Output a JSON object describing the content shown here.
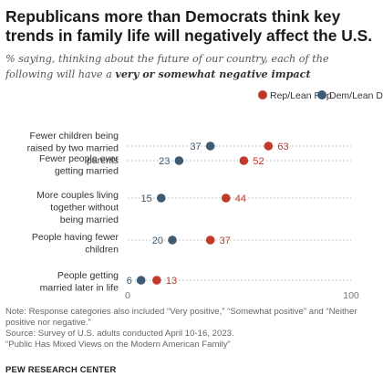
{
  "title": "Republicans more than Democrats think key trends in family life will negatively affect the U.S.",
  "subtitle_prefix": "% saying, thinking about the future of our country, each of the following will have a ",
  "subtitle_emphasis": "very or somewhat negative impact",
  "colors": {
    "rep": "#c0392b",
    "dem": "#3f5a73",
    "grid": "#b8b8b8",
    "label_rep": "#c0392b",
    "label_dem": "#3f5a73"
  },
  "chart_data": {
    "type": "scatter",
    "categories": [
      "Fewer children being raised by two married parents",
      "Fewer people ever getting married",
      "More couples living together without being married",
      "People having fewer children",
      "People getting married later in life"
    ],
    "category_lines": [
      [
        "Fewer children being",
        "raised by two married",
        "parents"
      ],
      [
        "Fewer people ever",
        "getting married"
      ],
      [
        "More couples living",
        "together without",
        "being married"
      ],
      [
        "People having fewer",
        "children"
      ],
      [
        "People getting",
        "married later in life"
      ]
    ],
    "series": [
      {
        "name": "Rep/Lean Rep",
        "values": [
          63,
          52,
          44,
          37,
          13
        ]
      },
      {
        "name": "Dem/Lean Dem",
        "values": [
          37,
          23,
          15,
          20,
          6
        ]
      }
    ],
    "xlim": [
      0,
      100
    ],
    "x_ticks": [
      "0",
      "100"
    ],
    "legend_position": "top-right",
    "grid": "dotted row lines"
  },
  "notes": [
    "Note: Response categories also included “Very positive,” “Somewhat positive” and “Neither positive nor negative.”",
    "Source: Survey of U.S. adults conducted April 10-16, 2023.",
    "“Public Has Mixed Views on the Modern American Family”"
  ],
  "source_org": "PEW RESEARCH CENTER"
}
